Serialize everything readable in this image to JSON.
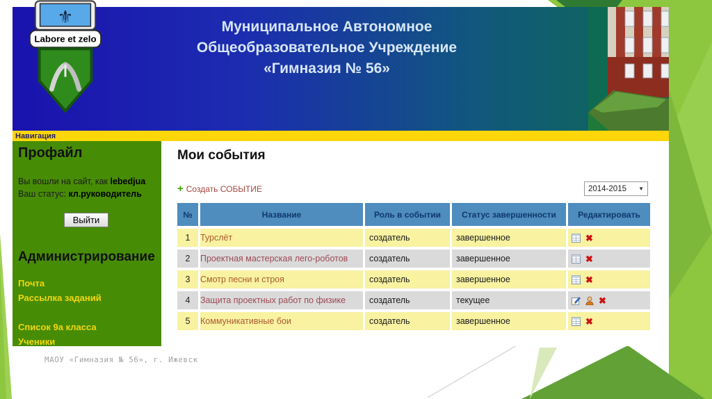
{
  "header": {
    "title_lines": [
      "Муниципальное Автономное",
      "Общеобразовательное Учреждение",
      "«Гимназия № 56»"
    ],
    "emblem_motto": "Labore et zelo"
  },
  "navbar": {
    "label": "Навигация"
  },
  "sidebar": {
    "profile_title": "Профайл",
    "login_prefix": "Вы вошли на сайт, как ",
    "login_name": "lebedjua",
    "status_prefix": "Ваш статус: ",
    "status_value": "кл.руководитель",
    "logout_label": "Выйти",
    "admin_title": "Администрирование",
    "links": [
      {
        "label": "Почта"
      },
      {
        "label": "Рассылка заданий"
      },
      {
        "label": "Список 9а класса"
      },
      {
        "label": "Ученики"
      }
    ]
  },
  "main": {
    "title": "Мои события",
    "create_plus": "+",
    "create_label": "Создать СОБЫТИЕ",
    "year_select": {
      "value": "2014-2015",
      "arrow": "▼"
    },
    "table": {
      "headers": [
        "№",
        "Название",
        "Роль в событии",
        "Статус завершенности",
        "Редактировать"
      ],
      "rows": [
        {
          "num": "1",
          "name": "Турслёт",
          "role": "создатель",
          "status": "завершенное",
          "icons": [
            "report-icon",
            "delete-icon"
          ]
        },
        {
          "num": "2",
          "name": "Проектная мастерская лего-роботов",
          "role": "создатель",
          "status": "завершенное",
          "icons": [
            "report-icon",
            "delete-icon"
          ]
        },
        {
          "num": "3",
          "name": "Смотр песни и строя",
          "role": "создатель",
          "status": "завершенное",
          "icons": [
            "report-icon",
            "delete-icon"
          ]
        },
        {
          "num": "4",
          "name": "Защита проектных работ по физике",
          "role": "создатель",
          "status": "текущее",
          "icons": [
            "edit-icon",
            "person-icon",
            "delete-icon"
          ]
        },
        {
          "num": "5",
          "name": "Коммуникативные бои",
          "role": "создатель",
          "status": "завершенное",
          "icons": [
            "report-icon",
            "delete-icon"
          ]
        }
      ]
    }
  },
  "footer": {
    "text": "МАОУ «Гимназия № 56», г. Ижевск"
  },
  "icons": {
    "delete_glyph": "✖"
  },
  "colors": {
    "accent_lime": "#8dc63f",
    "header_blue": "#1a12ae",
    "header_teal": "#0e6b52",
    "table_header_blue": "#4e8dbe",
    "row_yellow": "#f8f2a1",
    "row_grey": "#dadada",
    "sidebar_green": "#478c05",
    "nav_yellow": "#ffd60a",
    "link_red": "#a5463c"
  }
}
